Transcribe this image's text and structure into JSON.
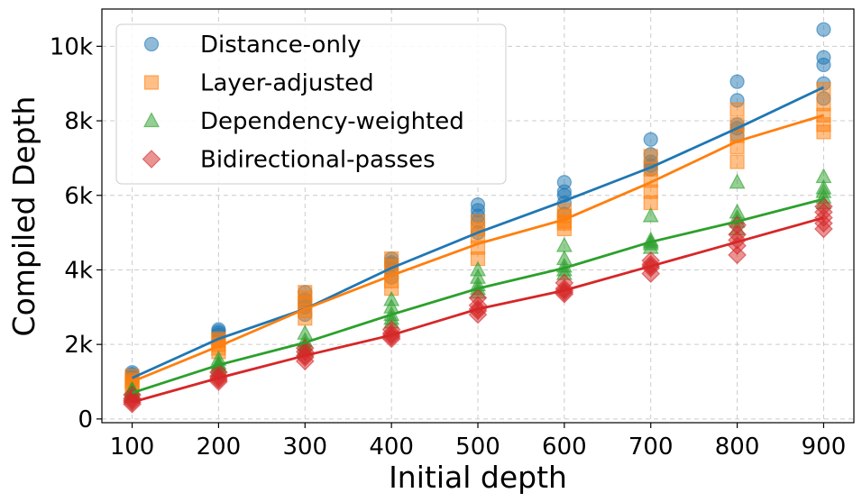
{
  "chart_data": {
    "type": "scatter",
    "title": "",
    "xlabel": "Initial depth",
    "ylabel": "Compiled Depth",
    "xlim": [
      65,
      935
    ],
    "ylim": [
      -100,
      11000
    ],
    "x_ticks": [
      100,
      200,
      300,
      400,
      500,
      600,
      700,
      800,
      900
    ],
    "x_tick_labels": [
      "100",
      "200",
      "300",
      "400",
      "500",
      "600",
      "700",
      "800",
      "900"
    ],
    "y_ticks": [
      0,
      2000,
      4000,
      6000,
      8000,
      10000
    ],
    "y_tick_labels": [
      "0",
      "2k",
      "4k",
      "6k",
      "8k",
      "10k"
    ],
    "grid": true,
    "legend_position": "top-left",
    "series": [
      {
        "name": "Distance-only",
        "color": "#1f77b4",
        "marker": "circle",
        "points": [
          [
            100,
            1050
          ],
          [
            100,
            1150
          ],
          [
            100,
            1250
          ],
          [
            100,
            1100
          ],
          [
            100,
            1200
          ],
          [
            200,
            2100
          ],
          [
            200,
            2250
          ],
          [
            200,
            2300
          ],
          [
            200,
            2400
          ],
          [
            200,
            2350
          ],
          [
            300,
            2800
          ],
          [
            300,
            3000
          ],
          [
            300,
            3100
          ],
          [
            300,
            3200
          ],
          [
            300,
            3400
          ],
          [
            400,
            3800
          ],
          [
            400,
            4000
          ],
          [
            400,
            4150
          ],
          [
            400,
            4200
          ],
          [
            400,
            4300
          ],
          [
            500,
            5000
          ],
          [
            500,
            5300
          ],
          [
            500,
            5450
          ],
          [
            500,
            5600
          ],
          [
            500,
            5750
          ],
          [
            600,
            5500
          ],
          [
            600,
            5800
          ],
          [
            600,
            6000
          ],
          [
            600,
            6100
          ],
          [
            600,
            6350
          ],
          [
            700,
            6700
          ],
          [
            700,
            6800
          ],
          [
            700,
            6900
          ],
          [
            700,
            7100
          ],
          [
            700,
            7500
          ],
          [
            800,
            7600
          ],
          [
            800,
            7800
          ],
          [
            800,
            7900
          ],
          [
            800,
            8550
          ],
          [
            800,
            9050
          ],
          [
            900,
            8600
          ],
          [
            900,
            9000
          ],
          [
            900,
            9500
          ],
          [
            900,
            9700
          ],
          [
            900,
            10450
          ]
        ],
        "fit": [
          [
            100,
            1100
          ],
          [
            200,
            2150
          ],
          [
            300,
            2950
          ],
          [
            400,
            4050
          ],
          [
            500,
            5000
          ],
          [
            600,
            5850
          ],
          [
            700,
            6750
          ],
          [
            800,
            7800
          ],
          [
            900,
            8900
          ]
        ]
      },
      {
        "name": "Layer-adjusted",
        "color": "#ff7f0e",
        "marker": "square",
        "points": [
          [
            100,
            850
          ],
          [
            100,
            950
          ],
          [
            100,
            1050
          ],
          [
            100,
            1150
          ],
          [
            100,
            1000
          ],
          [
            200,
            1800
          ],
          [
            200,
            1900
          ],
          [
            200,
            2000
          ],
          [
            200,
            2100
          ],
          [
            200,
            2150
          ],
          [
            300,
            2700
          ],
          [
            300,
            2900
          ],
          [
            300,
            3100
          ],
          [
            300,
            3250
          ],
          [
            300,
            3400
          ],
          [
            400,
            3500
          ],
          [
            400,
            3700
          ],
          [
            400,
            3900
          ],
          [
            400,
            4100
          ],
          [
            400,
            4300
          ],
          [
            500,
            4300
          ],
          [
            500,
            4600
          ],
          [
            500,
            4900
          ],
          [
            500,
            5100
          ],
          [
            500,
            5300
          ],
          [
            600,
            5100
          ],
          [
            600,
            5300
          ],
          [
            600,
            5450
          ],
          [
            600,
            5600
          ],
          [
            600,
            5250
          ],
          [
            700,
            5800
          ],
          [
            700,
            6100
          ],
          [
            700,
            6400
          ],
          [
            700,
            6700
          ],
          [
            700,
            7050
          ],
          [
            800,
            6900
          ],
          [
            800,
            7300
          ],
          [
            800,
            7600
          ],
          [
            800,
            7900
          ],
          [
            800,
            8300
          ],
          [
            900,
            7700
          ],
          [
            900,
            7900
          ],
          [
            900,
            8150
          ],
          [
            900,
            8450
          ],
          [
            900,
            8850
          ]
        ],
        "fit": [
          [
            100,
            1000
          ],
          [
            200,
            1950
          ],
          [
            300,
            2950
          ],
          [
            400,
            3850
          ],
          [
            500,
            4700
          ],
          [
            600,
            5350
          ],
          [
            700,
            6350
          ],
          [
            800,
            7450
          ],
          [
            900,
            8150
          ]
        ]
      },
      {
        "name": "Dependency-weighted",
        "color": "#2ca02c",
        "marker": "triangle",
        "points": [
          [
            100,
            650
          ],
          [
            100,
            750
          ],
          [
            100,
            800
          ],
          [
            100,
            700
          ],
          [
            100,
            600
          ],
          [
            200,
            1300
          ],
          [
            200,
            1400
          ],
          [
            200,
            1500
          ],
          [
            200,
            1600
          ],
          [
            200,
            1450
          ],
          [
            300,
            1900
          ],
          [
            300,
            2000
          ],
          [
            300,
            2100
          ],
          [
            300,
            2300
          ],
          [
            300,
            1850
          ],
          [
            400,
            2600
          ],
          [
            400,
            2800
          ],
          [
            400,
            3000
          ],
          [
            400,
            3200
          ],
          [
            400,
            2700
          ],
          [
            500,
            3400
          ],
          [
            500,
            3500
          ],
          [
            500,
            3600
          ],
          [
            500,
            3800
          ],
          [
            500,
            4000
          ],
          [
            600,
            3900
          ],
          [
            600,
            4000
          ],
          [
            600,
            4100
          ],
          [
            600,
            4300
          ],
          [
            600,
            4650
          ],
          [
            700,
            4600
          ],
          [
            700,
            4700
          ],
          [
            700,
            4750
          ],
          [
            700,
            4800
          ],
          [
            700,
            5450
          ],
          [
            800,
            5100
          ],
          [
            800,
            5300
          ],
          [
            800,
            5400
          ],
          [
            800,
            5550
          ],
          [
            800,
            6350
          ],
          [
            900,
            5800
          ],
          [
            900,
            5950
          ],
          [
            900,
            6100
          ],
          [
            900,
            6200
          ],
          [
            900,
            6500
          ]
        ],
        "fit": [
          [
            100,
            700
          ],
          [
            200,
            1450
          ],
          [
            300,
            2050
          ],
          [
            400,
            2800
          ],
          [
            500,
            3500
          ],
          [
            600,
            4050
          ],
          [
            700,
            4750
          ],
          [
            800,
            5300
          ],
          [
            900,
            5900
          ]
        ]
      },
      {
        "name": "Bidirectional-passes",
        "color": "#d62728",
        "marker": "diamond",
        "points": [
          [
            100,
            400
          ],
          [
            100,
            500
          ],
          [
            100,
            550
          ],
          [
            100,
            650
          ],
          [
            100,
            450
          ],
          [
            200,
            1000
          ],
          [
            200,
            1100
          ],
          [
            200,
            1150
          ],
          [
            200,
            1250
          ],
          [
            200,
            1050
          ],
          [
            300,
            1550
          ],
          [
            300,
            1650
          ],
          [
            300,
            1700
          ],
          [
            300,
            1800
          ],
          [
            300,
            1900
          ],
          [
            400,
            2150
          ],
          [
            400,
            2250
          ],
          [
            400,
            2300
          ],
          [
            400,
            2400
          ],
          [
            400,
            2200
          ],
          [
            500,
            2800
          ],
          [
            500,
            2900
          ],
          [
            500,
            2950
          ],
          [
            500,
            3050
          ],
          [
            500,
            3250
          ],
          [
            600,
            3350
          ],
          [
            600,
            3450
          ],
          [
            600,
            3500
          ],
          [
            600,
            3650
          ],
          [
            600,
            3400
          ],
          [
            700,
            3900
          ],
          [
            700,
            4050
          ],
          [
            700,
            4150
          ],
          [
            700,
            4250
          ],
          [
            700,
            4100
          ],
          [
            800,
            4400
          ],
          [
            800,
            4650
          ],
          [
            800,
            4800
          ],
          [
            800,
            4950
          ],
          [
            800,
            5200
          ],
          [
            900,
            5100
          ],
          [
            900,
            5250
          ],
          [
            900,
            5400
          ],
          [
            900,
            5550
          ],
          [
            900,
            5700
          ]
        ],
        "fit": [
          [
            100,
            450
          ],
          [
            200,
            1100
          ],
          [
            300,
            1700
          ],
          [
            400,
            2250
          ],
          [
            500,
            2950
          ],
          [
            600,
            3450
          ],
          [
            700,
            4100
          ],
          [
            800,
            4750
          ],
          [
            900,
            5400
          ]
        ]
      }
    ]
  }
}
